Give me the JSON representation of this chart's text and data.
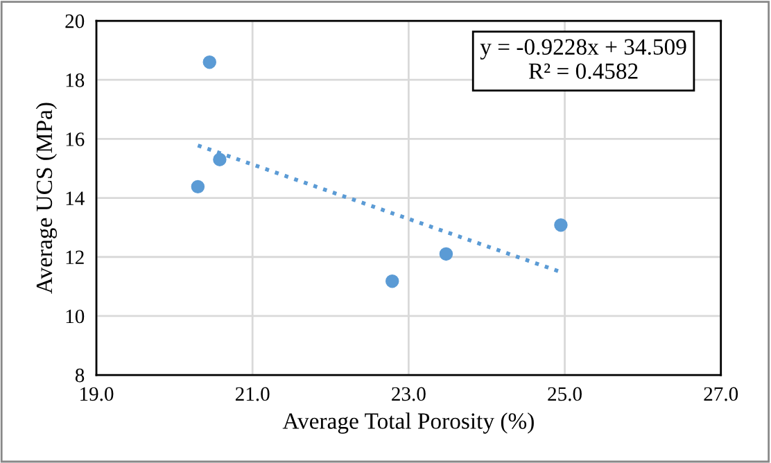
{
  "chart_data": {
    "type": "scatter",
    "xlabel": "Average Total Porosity (%)",
    "ylabel": "Average UCS (MPa)",
    "xlim": [
      19,
      27
    ],
    "xticks": [
      {
        "value": 19,
        "label": "19.0"
      },
      {
        "value": 21,
        "label": "21.0"
      },
      {
        "value": 23,
        "label": "23.0"
      },
      {
        "value": 25,
        "label": "25.0"
      },
      {
        "value": 27,
        "label": "27.0"
      }
    ],
    "ylim": [
      8,
      20
    ],
    "yticks": [
      8,
      10,
      12,
      14,
      16,
      18,
      20
    ],
    "grid": true,
    "series": [
      {
        "marker": "circle",
        "color": "#5b9bd5",
        "x": [
          20.45,
          20.3,
          20.58,
          22.79,
          23.48,
          24.95
        ],
        "values": [
          18.6,
          14.38,
          15.3,
          11.18,
          12.1,
          13.08
        ]
      },
      {
        "type": "line",
        "marker": "none",
        "color": "#5b9bd5",
        "line_style": "dotted",
        "x": [
          20.3,
          24.95
        ],
        "values": [
          15.78,
          11.49
        ]
      }
    ],
    "annotations": [
      "y = -0.9228x + 34.509\nR² = 0.4582"
    ]
  }
}
